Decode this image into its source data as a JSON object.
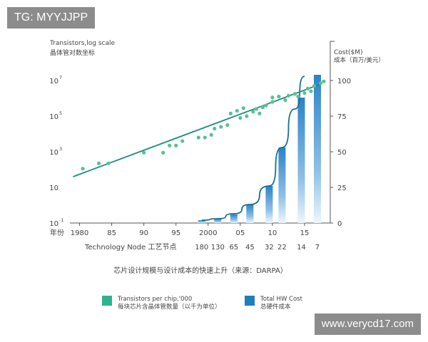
{
  "watermarks": {
    "top_left": "TG: MYYJJPP",
    "bottom_right": "www.verycd17.com"
  },
  "chart_data": {
    "type": "line",
    "title": "芯片设计规模与设计成本的快速上升（来源：DARPA）",
    "left_axis": {
      "label_line1": "Transistors,log scale",
      "label_line2": "晶体管对数坐标",
      "ticks": [
        {
          "label": "10",
          "exp": "7",
          "log": 7
        },
        {
          "label": "10",
          "exp": "5",
          "log": 5
        },
        {
          "label": "10",
          "exp": "3",
          "log": 3
        },
        {
          "label": "10",
          "exp": "",
          "log": 1
        },
        {
          "label": "10",
          "exp": "-1",
          "log": -1
        }
      ],
      "range_log": [
        -1,
        7
      ]
    },
    "right_axis": {
      "label_line1": "Cost($M)",
      "label_line2": "成本（百万/美元）",
      "ticks": [
        "100",
        "75",
        "50",
        "25",
        "0"
      ],
      "tick_values": [
        100,
        75,
        50,
        25,
        0
      ],
      "range": [
        0,
        100
      ]
    },
    "x_axis": {
      "year_label": "年份",
      "year_ticks": [
        "1980",
        "85",
        "90",
        "95",
        "2000",
        "05",
        "10",
        "15"
      ],
      "year_values": [
        1980,
        1985,
        1990,
        1995,
        2000,
        2005,
        2010,
        2015
      ],
      "node_title": "Technology Node 工艺节点",
      "node_ticks": [
        "180",
        "130",
        "65",
        "45",
        "32",
        "22",
        "14",
        "7"
      ],
      "node_years": [
        1999,
        2001.5,
        2004,
        2006.5,
        2009.5,
        2011.5,
        2014.5,
        2017
      ],
      "range": [
        1978.5,
        2019
      ]
    },
    "series": [
      {
        "name": "Transistors per chip,'000",
        "name_cn": "每块芯片含晶体管数量（以千为单位）",
        "color": "#2fb38f",
        "trend_line": [
          [
            1979,
            1.6
          ],
          [
            2017.5,
            6.8
          ]
        ],
        "points": [
          [
            1980.5,
            2.05
          ],
          [
            1983,
            2.35
          ],
          [
            1984.5,
            2.35
          ],
          [
            1990,
            2.95
          ],
          [
            1993,
            2.95
          ],
          [
            1994,
            3.35
          ],
          [
            1995,
            3.35
          ],
          [
            1996,
            3.6
          ],
          [
            1998.5,
            3.8
          ],
          [
            1999.5,
            3.8
          ],
          [
            2000.5,
            3.95
          ],
          [
            2001,
            4.3
          ],
          [
            2002,
            4.4
          ],
          [
            2003,
            4.5
          ],
          [
            2003.5,
            5.15
          ],
          [
            2004.5,
            5.3
          ],
          [
            2005.5,
            5.45
          ],
          [
            2005,
            4.9
          ],
          [
            2006,
            5.0
          ],
          [
            2007,
            5.25
          ],
          [
            2007.5,
            5.4
          ],
          [
            2008,
            5.15
          ],
          [
            2008.5,
            5.5
          ],
          [
            2009,
            5.6
          ],
          [
            2010,
            6.05
          ],
          [
            2010,
            5.8
          ],
          [
            2011,
            6.1
          ],
          [
            2012,
            5.9
          ],
          [
            2012.5,
            6.15
          ],
          [
            2013.5,
            6.25
          ],
          [
            2014,
            6.1
          ],
          [
            2015,
            6.3
          ],
          [
            2015.5,
            6.55
          ],
          [
            2016,
            6.4
          ],
          [
            2016.5,
            6.7
          ],
          [
            2017.5,
            6.85
          ],
          [
            2018,
            6.95
          ]
        ]
      },
      {
        "name": "Total HW Cost",
        "name_cn": "总硬件成本",
        "color": "#1e7fbf",
        "bars": [
          {
            "node": "180",
            "year": 1999,
            "value": 2
          },
          {
            "node": "130",
            "year": 2001.5,
            "value": 3
          },
          {
            "node": "65",
            "year": 2004,
            "value": 6
          },
          {
            "node": "45",
            "year": 2006.5,
            "value": 13
          },
          {
            "node": "32",
            "year": 2009.5,
            "value": 26
          },
          {
            "node": "22",
            "year": 2011.5,
            "value": 53
          },
          {
            "node": "14",
            "year": 2014.5,
            "value": 88
          },
          {
            "node": "7",
            "year": 2017,
            "value": 104
          }
        ],
        "curve": [
          [
            1999,
            2
          ],
          [
            2001.5,
            3
          ],
          [
            2004,
            6.5
          ],
          [
            2006.5,
            13
          ],
          [
            2009.5,
            26
          ],
          [
            2011.5,
            53
          ],
          [
            2013.5,
            80
          ],
          [
            2015,
            103
          ]
        ]
      }
    ],
    "legend": {
      "placement": "bottom",
      "items": [
        {
          "line1": "Transistors per chip,'000",
          "line2": "每块芯片含晶体管数量（以千为单位）",
          "color": "#2fb38f"
        },
        {
          "line1": "Total HW Cost",
          "line2": "总硬件成本",
          "color": "#1e7fbf"
        }
      ]
    }
  }
}
